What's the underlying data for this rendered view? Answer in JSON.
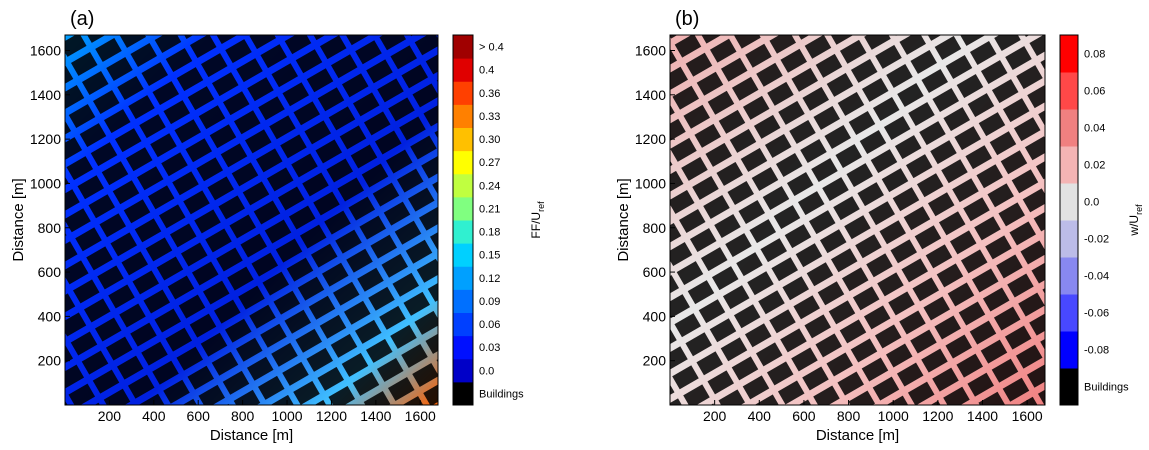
{
  "chart_data": [
    {
      "type": "fieldmap",
      "title": "(a)",
      "xlabel": "Distance [m]",
      "ylabel": "Distance [m]",
      "xlim": [
        0,
        1680
      ],
      "ylim": [
        0,
        1670
      ],
      "xticks": [
        200,
        400,
        600,
        800,
        1000,
        1200,
        1400,
        1600
      ],
      "yticks": [
        200,
        400,
        600,
        800,
        1000,
        1200,
        1400,
        1600
      ],
      "colorbar_label": "FF/U",
      "colorbar_label_sub": "ref",
      "colorbar_colors": [
        "#000000",
        "#0000c8",
        "#0010ff",
        "#0040ff",
        "#0070ff",
        "#00a0ff",
        "#00d0ff",
        "#30f0d0",
        "#80ff80",
        "#c0ff40",
        "#ffff00",
        "#ffc000",
        "#ff8000",
        "#ff4000",
        "#e00000",
        "#a00000"
      ],
      "colorbar_ticks": [
        "Buildings",
        {
          "value": 0,
          "label": "0.0"
        },
        0.03,
        0.06,
        0.09,
        0.12,
        0.15,
        0.18,
        0.21,
        0.24,
        0.27,
        {
          "value": 0.3,
          "label": "0.30"
        },
        0.33,
        0.36,
        0.4,
        "> 0.4"
      ]
    },
    {
      "type": "fieldmap",
      "title": "(b)",
      "xlabel": "Distance [m]",
      "ylabel": "Distance [m]",
      "xlim": [
        0,
        1680
      ],
      "ylim": [
        0,
        1670
      ],
      "xticks": [
        200,
        400,
        600,
        800,
        1000,
        1200,
        1400,
        1600
      ],
      "yticks": [
        200,
        400,
        600,
        800,
        1000,
        1200,
        1400,
        1600
      ],
      "colorbar_label": "w/U",
      "colorbar_label_sub": "ref",
      "colorbar_colors": [
        "#000000",
        "#0000ff",
        "#4848ff",
        "#8888f0",
        "#bcbce8",
        "#e2e2e2",
        "#f4b4b4",
        "#f08080",
        "#ff4848",
        "#ff0000"
      ],
      "colorbar_ticks": [
        "Buildings",
        -0.08,
        -0.06,
        -0.04,
        -0.02,
        {
          "value": 0,
          "label": "0.0"
        },
        0.02,
        0.04,
        0.06,
        0.08
      ]
    }
  ]
}
